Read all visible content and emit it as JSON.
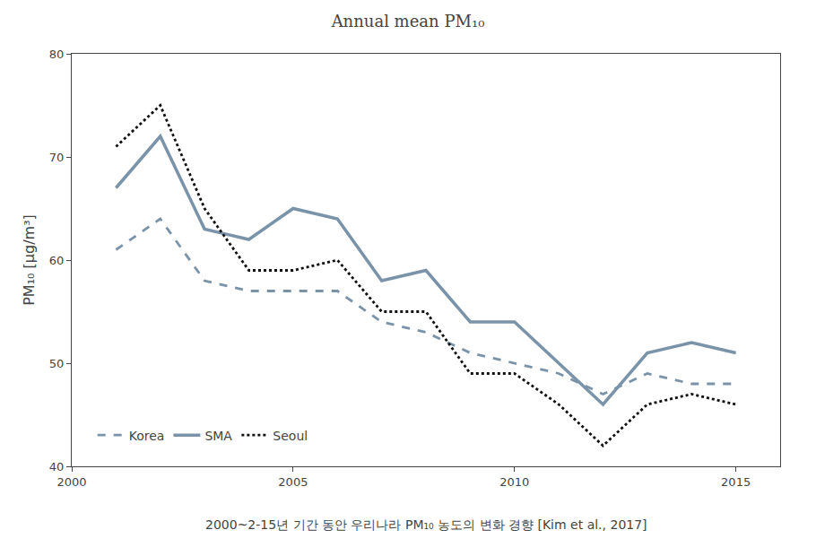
{
  "chart_data": {
    "type": "line",
    "title": "Annual mean PM₁₀",
    "ylabel": "PM₁₀ [μg/m³]",
    "annotations": [
      "2000~2-15년 기간 동안 우리나라 PM₁₀ 농도의 변화 경향 [Kim et al., 2017]"
    ],
    "x": [
      2001,
      2002,
      2003,
      2004,
      2005,
      2006,
      2007,
      2008,
      2009,
      2010,
      2011,
      2012,
      2013,
      2014,
      2015
    ],
    "series": [
      {
        "name": "Korea",
        "color": "#7a93a8",
        "line_style": "dashed",
        "values": [
          61,
          64,
          58,
          57,
          57,
          57,
          54,
          53,
          51,
          50,
          49,
          47,
          49,
          48,
          48
        ]
      },
      {
        "name": "SMA",
        "color": "#7a93a8",
        "line_style": "solid",
        "values": [
          67,
          72,
          63,
          62,
          65,
          64,
          58,
          59,
          54,
          54,
          50,
          46,
          51,
          52,
          51
        ]
      },
      {
        "name": "Seoul",
        "color": "#111111",
        "line_style": "dotted",
        "values": [
          71,
          75,
          65,
          59,
          59,
          60,
          55,
          55,
          49,
          49,
          46,
          42,
          46,
          47,
          46
        ]
      }
    ],
    "xlim": [
      2000,
      2016
    ],
    "ylim": [
      40,
      80
    ],
    "xticks": [
      2000,
      2005,
      2010,
      2015
    ],
    "yticks": [
      40,
      50,
      60,
      70,
      80
    ],
    "grid": false,
    "legend": "lower left"
  }
}
